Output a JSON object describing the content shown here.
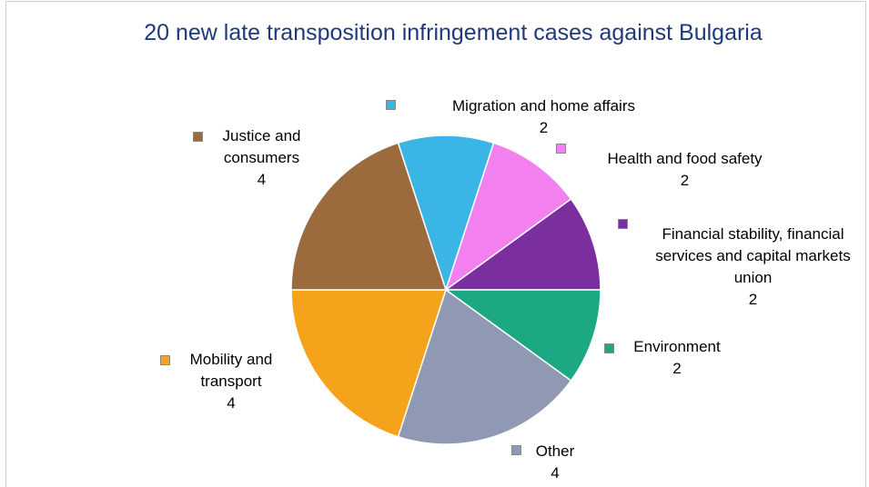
{
  "chart_data": {
    "type": "pie",
    "title": "20 new late transposition infringement cases against Bulgaria",
    "categories": [
      "Migration and home affairs",
      "Health and food safety",
      "Financial stability, financial services and capital markets union",
      "Environment",
      "Other",
      "Mobility and transport",
      "Justice and consumers"
    ],
    "values": [
      2,
      2,
      2,
      2,
      4,
      4,
      4
    ],
    "colors": [
      "#3bb4e6",
      "#f280ef",
      "#7b2f9f",
      "#1ba882",
      "#8f99b4",
      "#f5a31a",
      "#9c6b3d"
    ]
  }
}
